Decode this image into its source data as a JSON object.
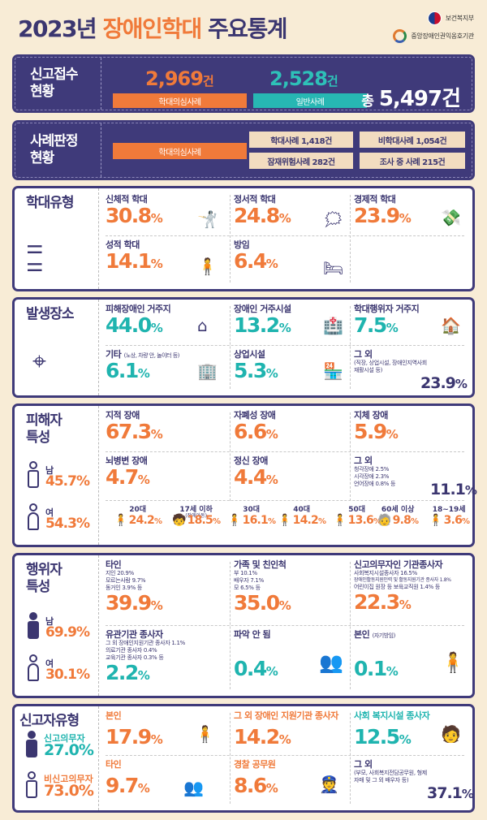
{
  "header": {
    "title_pre": "2023년 ",
    "title_hl": "장애인학대",
    "title_post": " 주요통계",
    "org1": "보건복지부",
    "org2": "중앙장애인권익옹호기관"
  },
  "report": {
    "label_1": "신고접수",
    "label_2": "현황",
    "a_value": "2,969",
    "a_unit": "건",
    "a_label": "학대의심사례",
    "b_value": "2,528",
    "b_unit": "건",
    "b_label": "일반사례",
    "total_prefix": "총",
    "total_value": "5,497",
    "total_unit": "건"
  },
  "judgment": {
    "label_1": "사례판정",
    "label_2": "현황",
    "main_label": "학대의심사례",
    "items": [
      "학대사례 1,418건",
      "비학대사례 1,054건",
      "잠재위험사례 282건",
      "조사 중 사례 215건"
    ]
  },
  "abuse_type": {
    "label": "학대유형",
    "items": [
      {
        "label": "신체적 학대",
        "value": "30.8",
        "unit": "%"
      },
      {
        "label": "정서적 학대",
        "value": "24.8",
        "unit": "%"
      },
      {
        "label": "경제적 학대",
        "value": "23.9",
        "unit": "%"
      },
      {
        "label": "성적 학대",
        "value": "14.1",
        "unit": "%"
      },
      {
        "label": "방임",
        "value": "6.4",
        "unit": "%"
      }
    ]
  },
  "location": {
    "label": "발생장소",
    "items": [
      {
        "label": "피해장애인 거주지",
        "value": "44.0",
        "unit": "%"
      },
      {
        "label": "장애인 거주시설",
        "value": "13.2",
        "unit": "%"
      },
      {
        "label": "학대행위자 거주지",
        "value": "7.5",
        "unit": "%"
      },
      {
        "label": "기타",
        "note": "(노상, 차량 안, 놀이터 등)",
        "value": "6.1",
        "unit": "%"
      },
      {
        "label": "상업시설",
        "value": "5.3",
        "unit": "%"
      },
      {
        "label": "그 외",
        "note": "(직장, 상업시설, 장애인지역사회재활시설 등)",
        "value": "23.9",
        "unit": "%"
      }
    ]
  },
  "victim": {
    "label_1": "피해자",
    "label_2": "특성",
    "male_label": "남",
    "male_value": "45.7%",
    "female_label": "여",
    "female_value": "54.3%",
    "items": [
      {
        "label": "지적 장애",
        "value": "67.3",
        "unit": "%"
      },
      {
        "label": "자폐성 장애",
        "value": "6.6",
        "unit": "%"
      },
      {
        "label": "지체 장애",
        "value": "5.9",
        "unit": "%"
      },
      {
        "label": "뇌병변 장애",
        "value": "4.7",
        "unit": "%"
      },
      {
        "label": "정신 장애",
        "value": "4.4",
        "unit": "%"
      },
      {
        "label": "그 외",
        "sub": [
          "청각장애 2.5%",
          "시각장애 2.3%",
          "언어장애 0.8% 등"
        ],
        "value": "11.1",
        "unit": "%"
      }
    ],
    "ages": [
      {
        "label": "20대",
        "value": "24.2",
        "unit": "%"
      },
      {
        "label": "17세 이하",
        "note": "(장애아동)",
        "value": "18.5",
        "unit": "%"
      },
      {
        "label": "30대",
        "value": "16.1",
        "unit": "%"
      },
      {
        "label": "40대",
        "value": "14.2",
        "unit": "%"
      },
      {
        "label": "50대",
        "value": "13.6",
        "unit": "%"
      },
      {
        "label": "60세 이상",
        "value": "9.8",
        "unit": "%"
      },
      {
        "label": "18~19세",
        "value": "3.6",
        "unit": "%"
      }
    ]
  },
  "perpetrator": {
    "label_1": "행위자",
    "label_2": "특성",
    "male_label": "남",
    "male_value": "69.9%",
    "female_label": "여",
    "female_value": "30.1%",
    "items": [
      {
        "label": "타인",
        "sub": [
          "지인 20.9%",
          "모르는사람 9.7%",
          "동거인 3.9% 등"
        ],
        "value": "39.9",
        "unit": "%"
      },
      {
        "label": "가족 및 친인척",
        "sub": [
          "부 10.1%",
          "배우자 7.1%",
          "모 6.5% 등"
        ],
        "value": "35.0",
        "unit": "%"
      },
      {
        "label": "신고의무자인 기관종사자",
        "sub": [
          "사회복지시설종사자 16.5%",
          "장애인활동지원인력 및 활동지원기관 종사자 1.8%",
          "어린이집 원장 등 보육교직원 1.4% 등"
        ],
        "value": "22.3",
        "unit": "%"
      },
      {
        "label": "유관기관 종사자",
        "sub": [
          "그 외 장애인지원기관 종사자 1.1%",
          "의료기관 종사자 0.4%",
          "교육기관 종사자 0.3% 등"
        ],
        "value": "2.2",
        "unit": "%"
      },
      {
        "label": "파악 안 됨",
        "value": "0.4",
        "unit": "%"
      },
      {
        "label": "본인",
        "note": "(자기방임)",
        "value": "0.1",
        "unit": "%"
      }
    ]
  },
  "reporter": {
    "label": "신고자유형",
    "duty_label": "신고의무자",
    "duty_value": "27.0%",
    "nonduty_label": "비신고의무자",
    "nonduty_value": "73.0%",
    "items": [
      {
        "label": "본인",
        "value": "17.9",
        "unit": "%"
      },
      {
        "label": "그 외 장애인 지원기관 종사자",
        "value": "14.2",
        "unit": "%"
      },
      {
        "label": "사회 복지시설 종사자",
        "value": "12.5",
        "unit": "%"
      },
      {
        "label": "타인",
        "value": "9.7",
        "unit": "%"
      },
      {
        "label": "경찰 공무원",
        "value": "8.6",
        "unit": "%"
      },
      {
        "label": "그 외",
        "note": "(부모, 사회복지전담공무원, 형제자매 및 그 외 배우자 등)",
        "value": "37.1",
        "unit": "%"
      }
    ]
  },
  "colors": {
    "navy": "#3f3a7a",
    "orange": "#f07a3a",
    "teal": "#1fb4af",
    "cream": "#f8ecd6"
  }
}
